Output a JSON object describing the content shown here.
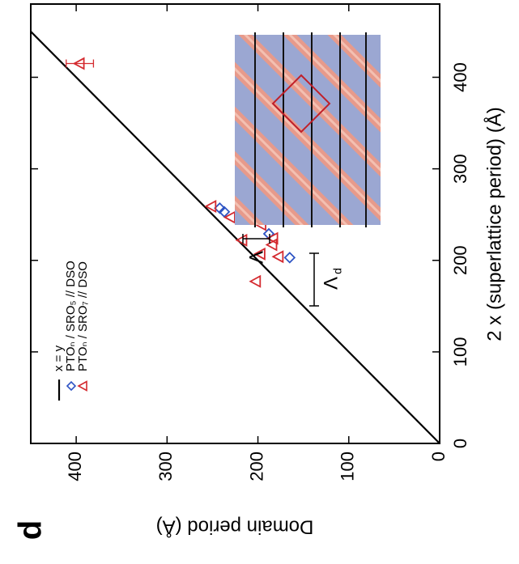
{
  "chart_data": {
    "type": "scatter",
    "panel_label": "d",
    "xlabel": "2 x (superlattice period) (Å)",
    "ylabel": "Domain period (Å)",
    "xlim": [
      0,
      480
    ],
    "ylim": [
      0,
      450
    ],
    "xticks": [
      0,
      100,
      200,
      300,
      400
    ],
    "yticks": [
      0,
      100,
      200,
      300,
      400
    ],
    "series": [
      {
        "name": "x = y",
        "type": "line",
        "color": "#000000",
        "x": [
          0,
          450
        ],
        "values": [
          0,
          450
        ]
      },
      {
        "name": "PTOₙ / SRO₅ // DSO",
        "type": "scatter",
        "marker": "diamond",
        "color": "#2f55c4",
        "x": [
          253,
          257,
          229,
          203
        ],
        "values": [
          237,
          242,
          188,
          165
        ]
      },
      {
        "name": "PTOₙ / SRO₇ // DSO",
        "type": "scatter",
        "marker": "triangle",
        "color": "#d42a2f",
        "x": [
          415,
          259,
          247,
          239,
          222,
          224,
          217,
          207,
          204,
          177
        ],
        "values": [
          396,
          251,
          230,
          196,
          217,
          183,
          184,
          197,
          177,
          202
        ],
        "yerr": [
          15,
          null,
          null,
          null,
          null,
          null,
          null,
          null,
          null,
          null
        ]
      }
    ],
    "inset_labels": [
      {
        "text": "Λ"
      },
      {
        "text": "Λ",
        "subscript": "d"
      }
    ]
  }
}
